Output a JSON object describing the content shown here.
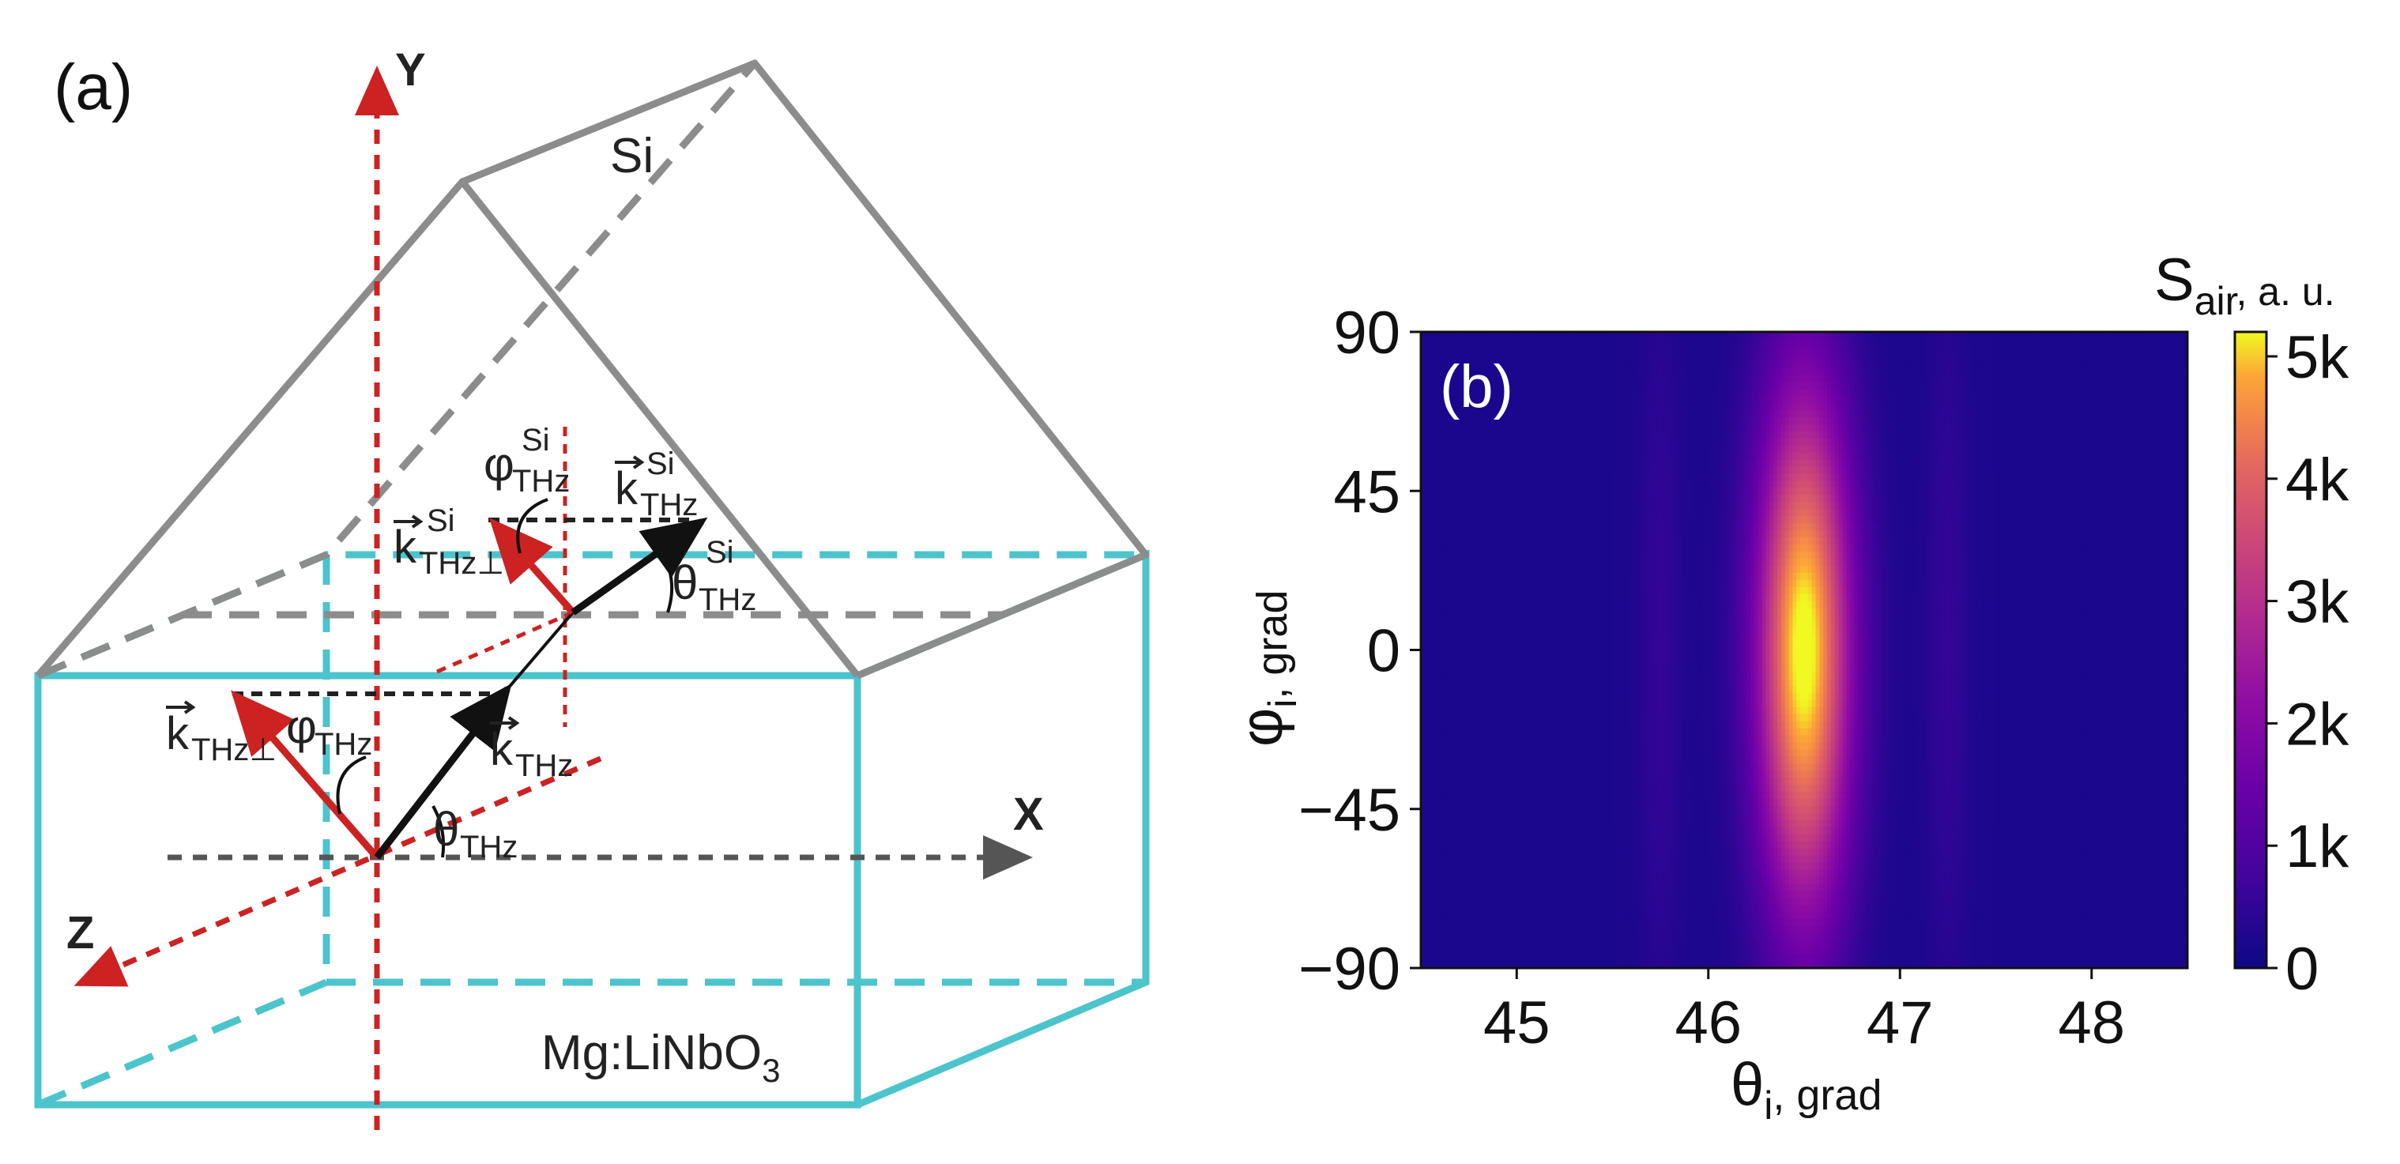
{
  "panel_a": {
    "label": "(a)",
    "axis_y": "Y",
    "axis_x": "X",
    "axis_z": "Z",
    "prism_label": "Si",
    "crystal_label": "Mg:LiNbO",
    "crystal_label_sub": "3",
    "k_lower_main": "k",
    "k_lower_main_sub": "THz",
    "k_lower_perp": "k",
    "k_lower_perp_sub": "THz⊥",
    "phi_lower": "φ",
    "phi_lower_sub": "THz",
    "theta_lower": "θ",
    "theta_lower_sub": "THz",
    "k_upper_main": "k",
    "k_upper_main_sub": "THz",
    "k_upper_main_sup": "Si",
    "k_upper_perp": "k",
    "k_upper_perp_sub": "THz⊥",
    "k_upper_perp_sup": "Si",
    "phi_upper": "φ",
    "phi_upper_sub": "THz",
    "phi_upper_sup": "Si",
    "theta_upper": "θ",
    "theta_upper_sub": "THz",
    "theta_upper_sup": "Si",
    "colors": {
      "prism": "#8c8c8c",
      "crystal": "#4cc4cc",
      "axis_red": "#cc2222",
      "axis_gray": "#555555",
      "vector_black": "#111111"
    }
  },
  "panel_b": {
    "label": "(b)",
    "colorbar_title": "S",
    "colorbar_title_sub": "air",
    "colorbar_title_suffix": ", a. u.",
    "colorbar_ticks": [
      "0",
      "1k",
      "2k",
      "3k",
      "4k",
      "5k"
    ],
    "colormap": "plasma"
  },
  "chart_data": {
    "type": "heatmap",
    "title": "",
    "xlabel": "θ",
    "xlabel_sub": "i",
    "xlabel_suffix": ", grad",
    "ylabel": "φ",
    "ylabel_sub": "i",
    "ylabel_suffix": ", grad",
    "xlim": [
      44.5,
      48.5
    ],
    "ylim": [
      -90,
      90
    ],
    "x_ticks": [
      45,
      46,
      47,
      48
    ],
    "x_tick_labels": [
      "45",
      "46",
      "47",
      "48"
    ],
    "y_ticks": [
      -90,
      -45,
      0,
      45,
      90
    ],
    "y_tick_labels": [
      "−90",
      "−45",
      "0",
      "45",
      "90"
    ],
    "color_range": [
      0,
      5200
    ],
    "colorbar_tick_values": [
      0,
      1000,
      2000,
      3000,
      4000,
      5000
    ],
    "peak": {
      "theta": 46.5,
      "phi": 0,
      "value": 5200
    },
    "peak_width_theta": 0.17,
    "peak_width_phi": 52,
    "side_lobes": [
      {
        "theta": 45.75,
        "value": 350
      },
      {
        "theta": 47.25,
        "value": 350
      }
    ],
    "background_value": 200
  }
}
